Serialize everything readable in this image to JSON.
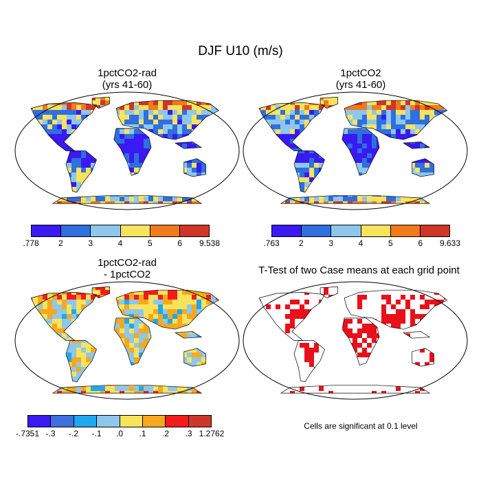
{
  "figure": {
    "title": "DJF U10 (m/s)"
  },
  "panels": [
    {
      "id": "a",
      "title_lines": [
        "1pctCO2-rad",
        "(yrs 41-60)"
      ],
      "colorbar": {
        "labels": [
          ".778",
          "2",
          "3",
          "4",
          "5",
          "6",
          "9.538"
        ],
        "colors": [
          "#3a19f2",
          "#2f6fe1",
          "#8ec7ec",
          "#f7e35c",
          "#f07a1c",
          "#d03627"
        ]
      }
    },
    {
      "id": "b",
      "title_lines": [
        "1pctCO2",
        "(yrs 41-60)"
      ],
      "colorbar": {
        "labels": [
          ".763",
          "2",
          "3",
          "4",
          "5",
          "6",
          "9.633"
        ],
        "colors": [
          "#3a19f2",
          "#2f6fe1",
          "#8ec7ec",
          "#f7e35c",
          "#f07a1c",
          "#d03627"
        ]
      }
    },
    {
      "id": "c",
      "title_lines": [
        "1pctCO2-rad",
        "- 1pctCO2"
      ],
      "colorbar": {
        "labels": [
          "-.7351",
          "-.3",
          "-.2",
          "-.1",
          ".0",
          ".1",
          ".2",
          ".3",
          "1.2762"
        ],
        "colors": [
          "#3a19f2",
          "#3c6fe0",
          "#1ea8f0",
          "#8ec7ec",
          "#f7e35c",
          "#f7a81c",
          "#f51b1b",
          "#d03627"
        ]
      }
    },
    {
      "id": "d",
      "title_lines": [
        "T-Test of two Case means at each grid point"
      ],
      "footnote": "Cells are significant at 0.1 level",
      "signif_color": "#e8101a"
    }
  ]
}
